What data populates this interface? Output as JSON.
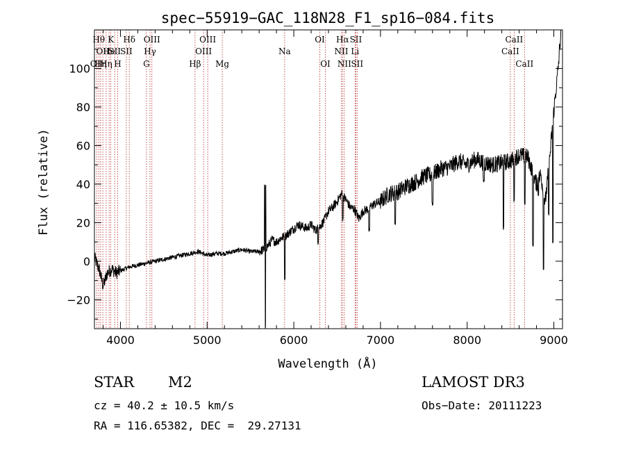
{
  "chart_data": {
    "type": "line",
    "title": "spec−55919−GAC_118N28_F1_sp16−084.fits",
    "xlabel": "Wavelength (Å)",
    "ylabel": "Flux (relative)",
    "xlim": [
      3700,
      9100
    ],
    "ylim": [
      -35,
      120
    ],
    "xticks": [
      {
        "value": 4000,
        "label": "4000"
      },
      {
        "value": 5000,
        "label": "5000"
      },
      {
        "value": 6000,
        "label": "6000"
      },
      {
        "value": 7000,
        "label": "7000"
      },
      {
        "value": 8000,
        "label": "8000"
      },
      {
        "value": 9000,
        "label": "9000"
      }
    ],
    "yticks": [
      {
        "value": -20,
        "label": "−20"
      },
      {
        "value": 0,
        "label": "0"
      },
      {
        "value": 20,
        "label": "20"
      },
      {
        "value": 40,
        "label": "40"
      },
      {
        "value": 60,
        "label": "60"
      },
      {
        "value": 80,
        "label": "80"
      },
      {
        "value": 100,
        "label": "100"
      }
    ],
    "spectrum_anchors": [
      [
        3700,
        2
      ],
      [
        3760,
        -5
      ],
      [
        3800,
        -13
      ],
      [
        3850,
        -6
      ],
      [
        3900,
        -4
      ],
      [
        3950,
        -6
      ],
      [
        4000,
        -5
      ],
      [
        4100,
        -3
      ],
      [
        4200,
        -2
      ],
      [
        4300,
        -1
      ],
      [
        4400,
        0
      ],
      [
        4500,
        1
      ],
      [
        4600,
        2
      ],
      [
        4700,
        3
      ],
      [
        4800,
        4
      ],
      [
        4900,
        5
      ],
      [
        5000,
        3
      ],
      [
        5100,
        4
      ],
      [
        5200,
        4
      ],
      [
        5300,
        5
      ],
      [
        5400,
        6
      ],
      [
        5500,
        5
      ],
      [
        5600,
        5
      ],
      [
        5650,
        6
      ],
      [
        5700,
        8
      ],
      [
        5750,
        11
      ],
      [
        5800,
        10
      ],
      [
        5850,
        12
      ],
      [
        5900,
        13
      ],
      [
        5950,
        15
      ],
      [
        6000,
        17
      ],
      [
        6050,
        19
      ],
      [
        6100,
        18
      ],
      [
        6150,
        17
      ],
      [
        6200,
        19
      ],
      [
        6250,
        16
      ],
      [
        6300,
        18
      ],
      [
        6350,
        21
      ],
      [
        6400,
        26
      ],
      [
        6450,
        28
      ],
      [
        6500,
        31
      ],
      [
        6550,
        35
      ],
      [
        6600,
        32
      ],
      [
        6650,
        28
      ],
      [
        6700,
        27
      ],
      [
        6750,
        22
      ],
      [
        6800,
        26
      ],
      [
        6850,
        27
      ],
      [
        6900,
        29
      ],
      [
        6950,
        30
      ],
      [
        7000,
        31
      ],
      [
        7100,
        35
      ],
      [
        7200,
        36
      ],
      [
        7300,
        39
      ],
      [
        7400,
        41
      ],
      [
        7500,
        44
      ],
      [
        7600,
        45
      ],
      [
        7700,
        48
      ],
      [
        7800,
        49
      ],
      [
        7900,
        52
      ],
      [
        8000,
        50
      ],
      [
        8100,
        53
      ],
      [
        8200,
        51
      ],
      [
        8300,
        50
      ],
      [
        8400,
        51
      ],
      [
        8500,
        52
      ],
      [
        8600,
        55
      ],
      [
        8700,
        54
      ],
      [
        8800,
        40
      ],
      [
        8850,
        45
      ],
      [
        8900,
        30
      ],
      [
        8950,
        52
      ],
      [
        9000,
        78
      ],
      [
        9050,
        100
      ],
      [
        9100,
        130
      ]
    ],
    "absorption_features": [
      [
        5670,
        40,
        18
      ],
      [
        5672,
        -35,
        6
      ],
      [
        5895,
        -8,
        10
      ],
      [
        6280,
        10,
        8
      ],
      [
        6565,
        22,
        12
      ],
      [
        6870,
        16,
        14
      ],
      [
        7170,
        20,
        14
      ],
      [
        7600,
        30,
        18
      ],
      [
        8190,
        42,
        16
      ],
      [
        8420,
        17,
        10
      ],
      [
        8542,
        32,
        10
      ],
      [
        8665,
        30,
        10
      ],
      [
        8760,
        8,
        12
      ],
      [
        8820,
        35,
        10
      ],
      [
        8880,
        -3,
        10
      ],
      [
        8940,
        25,
        10
      ],
      [
        8990,
        10,
        10
      ]
    ],
    "lines": [
      {
        "wavelength": 3727,
        "row": 2,
        "label": "OII"
      },
      {
        "wavelength": 3750,
        "row": 0,
        "label": "Hθ"
      },
      {
        "wavelength": 3771,
        "row": 2,
        "label": "Hη"
      },
      {
        "wavelength": 3797,
        "row": 1,
        "label": "OII"
      },
      {
        "wavelength": 3835,
        "row": 2,
        "label": "Hη"
      },
      {
        "wavelength": 3869,
        "row": 1,
        "label": "He"
      },
      {
        "wavelength": 3889,
        "row": 0,
        "label": "K"
      },
      {
        "wavelength": 3934,
        "row": 1,
        "label": "SII"
      },
      {
        "wavelength": 3968,
        "row": 2,
        "label": "H"
      },
      {
        "wavelength": 4068,
        "row": 1,
        "label": "SII"
      },
      {
        "wavelength": 4102,
        "row": 0,
        "label": "Hδ"
      },
      {
        "wavelength": 4300,
        "row": 2,
        "label": "G"
      },
      {
        "wavelength": 4341,
        "row": 1,
        "label": "Hγ"
      },
      {
        "wavelength": 4363,
        "row": 0,
        "label": "OIII"
      },
      {
        "wavelength": 4861,
        "row": 2,
        "label": "Hβ"
      },
      {
        "wavelength": 4959,
        "row": 1,
        "label": "OIII"
      },
      {
        "wavelength": 5007,
        "row": 0,
        "label": "OIII"
      },
      {
        "wavelength": 5175,
        "row": 2,
        "label": "Mg"
      },
      {
        "wavelength": 5894,
        "row": 1,
        "label": "Na"
      },
      {
        "wavelength": 6300,
        "row": 0,
        "label": "OI"
      },
      {
        "wavelength": 6364,
        "row": 2,
        "label": "OI"
      },
      {
        "wavelength": 6548,
        "row": 1,
        "label": "NII"
      },
      {
        "wavelength": 6563,
        "row": 0,
        "label": "Hα"
      },
      {
        "wavelength": 6583,
        "row": 2,
        "label": "NII"
      },
      {
        "wavelength": 6707,
        "row": 1,
        "label": "Li"
      },
      {
        "wavelength": 6716,
        "row": 0,
        "label": "SII"
      },
      {
        "wavelength": 6731,
        "row": 2,
        "label": "SII"
      },
      {
        "wavelength": 8498,
        "row": 1,
        "label": "CaII"
      },
      {
        "wavelength": 8542,
        "row": 0,
        "label": "CaII"
      },
      {
        "wavelength": 8662,
        "row": 2,
        "label": "CaII"
      }
    ]
  },
  "info": {
    "object_type": "STAR",
    "subclass": "M2",
    "survey": "LAMOST DR3",
    "cz": "cz = 40.2 ± 10.5 km/s",
    "obs_date": "Obs−Date: 20111223",
    "coords": "RA = 116.65382, DEC =  29.27131"
  }
}
